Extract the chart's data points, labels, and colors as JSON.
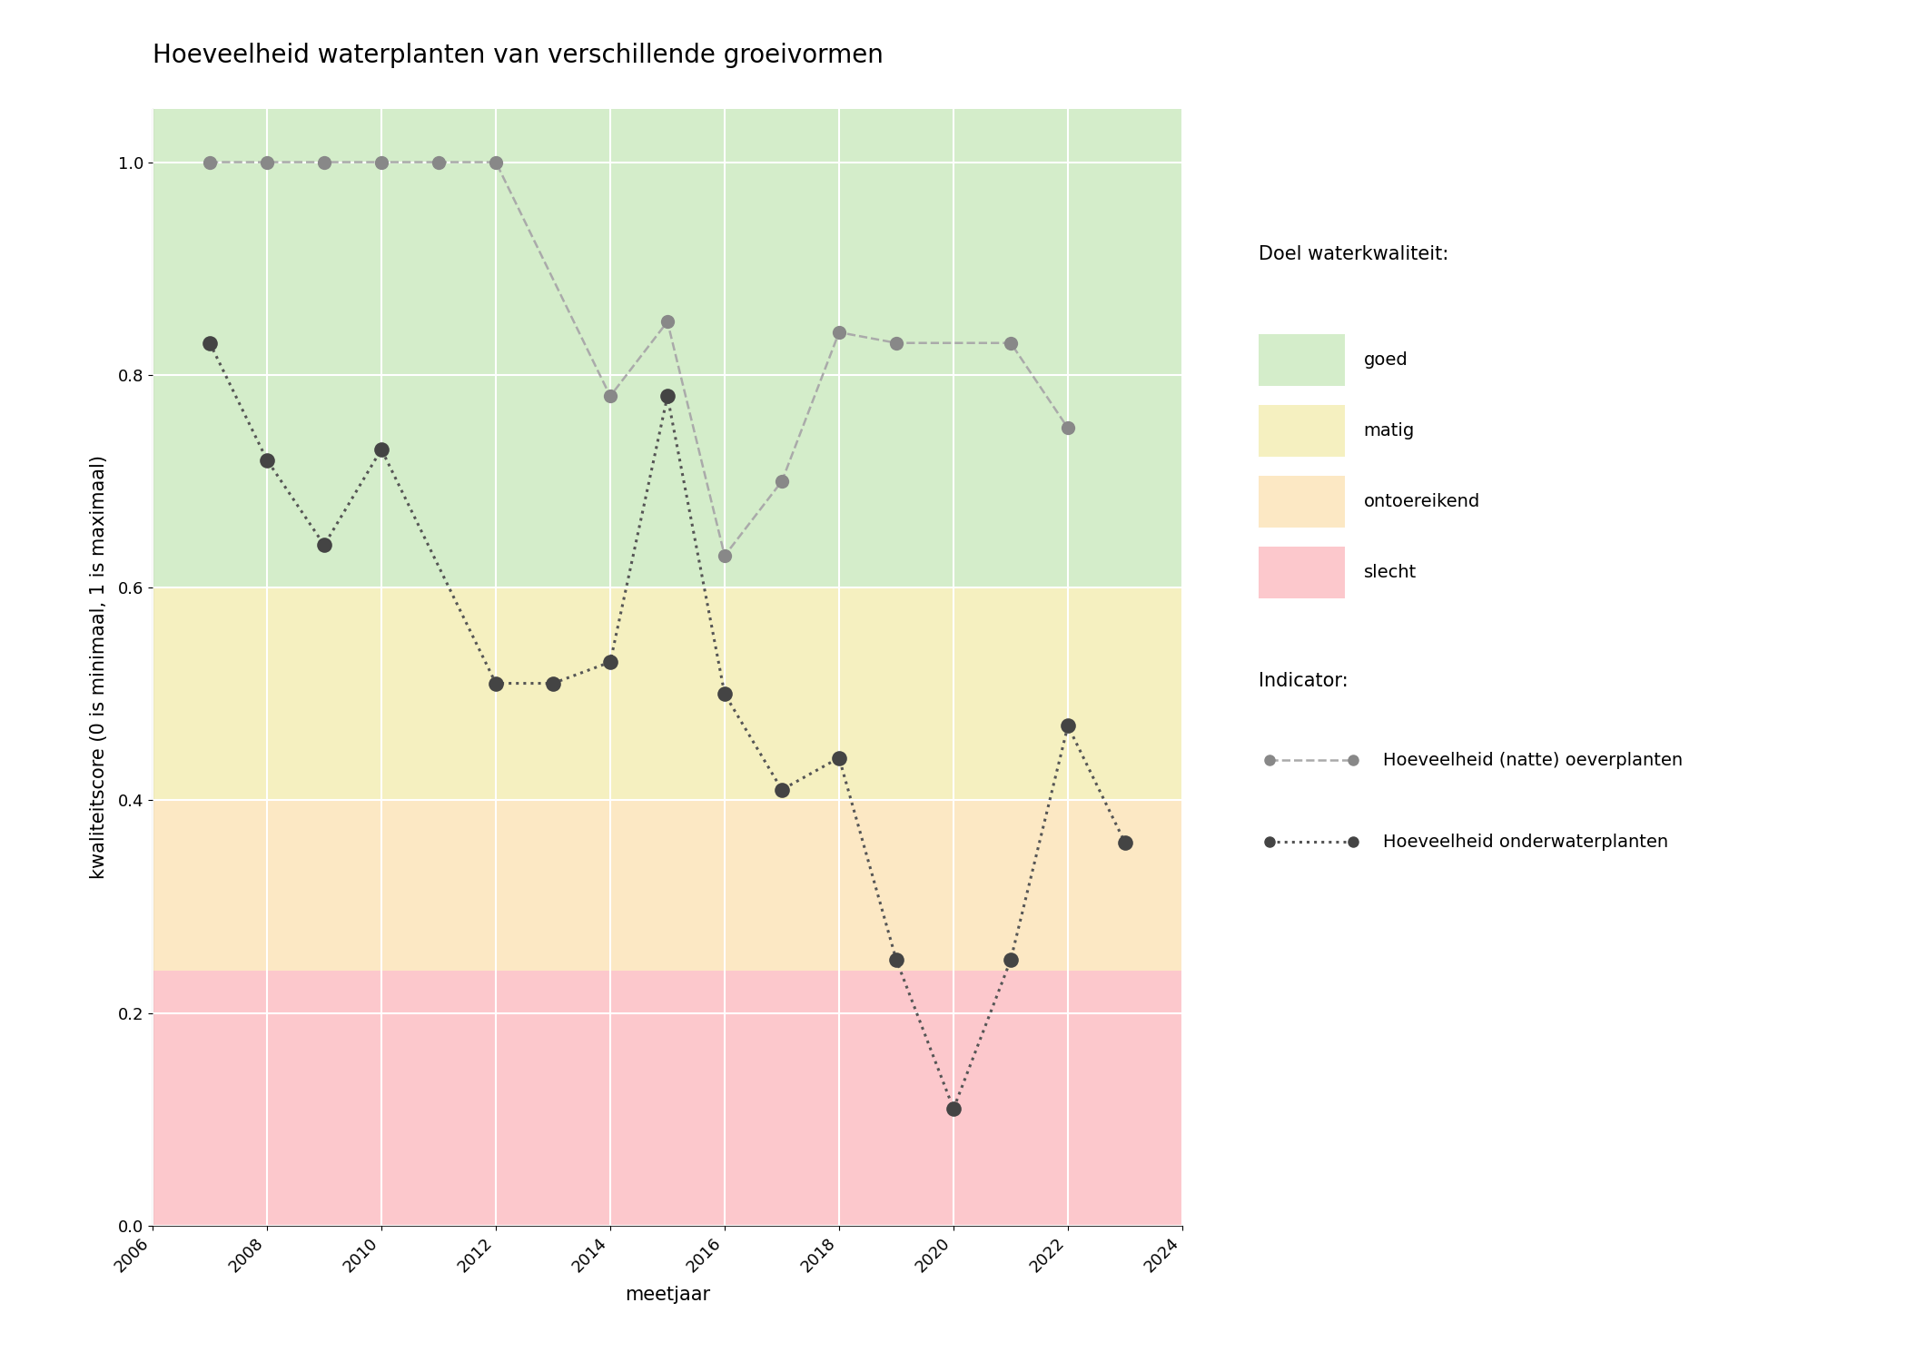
{
  "title": "Hoeveelheid waterplanten van verschillende groeivormen",
  "xlabel": "meetjaar",
  "ylabel": "kwaliteitscore (0 is minimaal, 1 is maximaal)",
  "xlim": [
    2006,
    2024
  ],
  "ylim": [
    0.0,
    1.05
  ],
  "yticks": [
    0.0,
    0.2,
    0.4,
    0.6,
    0.8,
    1.0
  ],
  "xticks": [
    2006,
    2008,
    2010,
    2012,
    2014,
    2016,
    2018,
    2020,
    2022,
    2024
  ],
  "bg_color": "#ffffff",
  "zone_colors": {
    "goed": "#d4edca",
    "matig": "#f5f0c0",
    "ontoereikend": "#fce8c4",
    "slecht": "#fcc8cc"
  },
  "zone_ranges": {
    "goed": [
      0.6,
      1.05
    ],
    "matig": [
      0.4,
      0.6
    ],
    "ontoereikend": [
      0.24,
      0.4
    ],
    "slecht": [
      0.0,
      0.24
    ]
  },
  "line1": {
    "name": "Hoeveelheid (natte) oeverplanten",
    "color": "#aaaaaa",
    "marker_color": "#888888",
    "x": [
      2007,
      2008,
      2009,
      2010,
      2011,
      2012,
      2014,
      2015,
      2016,
      2017,
      2018,
      2019,
      2021,
      2022
    ],
    "y": [
      1.0,
      1.0,
      1.0,
      1.0,
      1.0,
      1.0,
      0.78,
      0.85,
      0.63,
      0.7,
      0.84,
      0.83,
      0.83,
      0.75
    ]
  },
  "line2": {
    "name": "Hoeveelheid onderwaterplanten",
    "color": "#555555",
    "marker_color": "#444444",
    "x": [
      2007,
      2008,
      2009,
      2010,
      2012,
      2013,
      2014,
      2015,
      2016,
      2017,
      2018,
      2019,
      2020,
      2021,
      2022,
      2023
    ],
    "y": [
      0.83,
      0.72,
      0.64,
      0.73,
      0.51,
      0.51,
      0.53,
      0.78,
      0.5,
      0.41,
      0.44,
      0.25,
      0.11,
      0.25,
      0.47,
      0.36
    ]
  },
  "legend_title_quality": "Doel waterkwaliteit:",
  "legend_title_indicator": "Indicator:",
  "title_fontsize": 20,
  "label_fontsize": 15,
  "tick_fontsize": 13,
  "legend_fontsize": 14
}
